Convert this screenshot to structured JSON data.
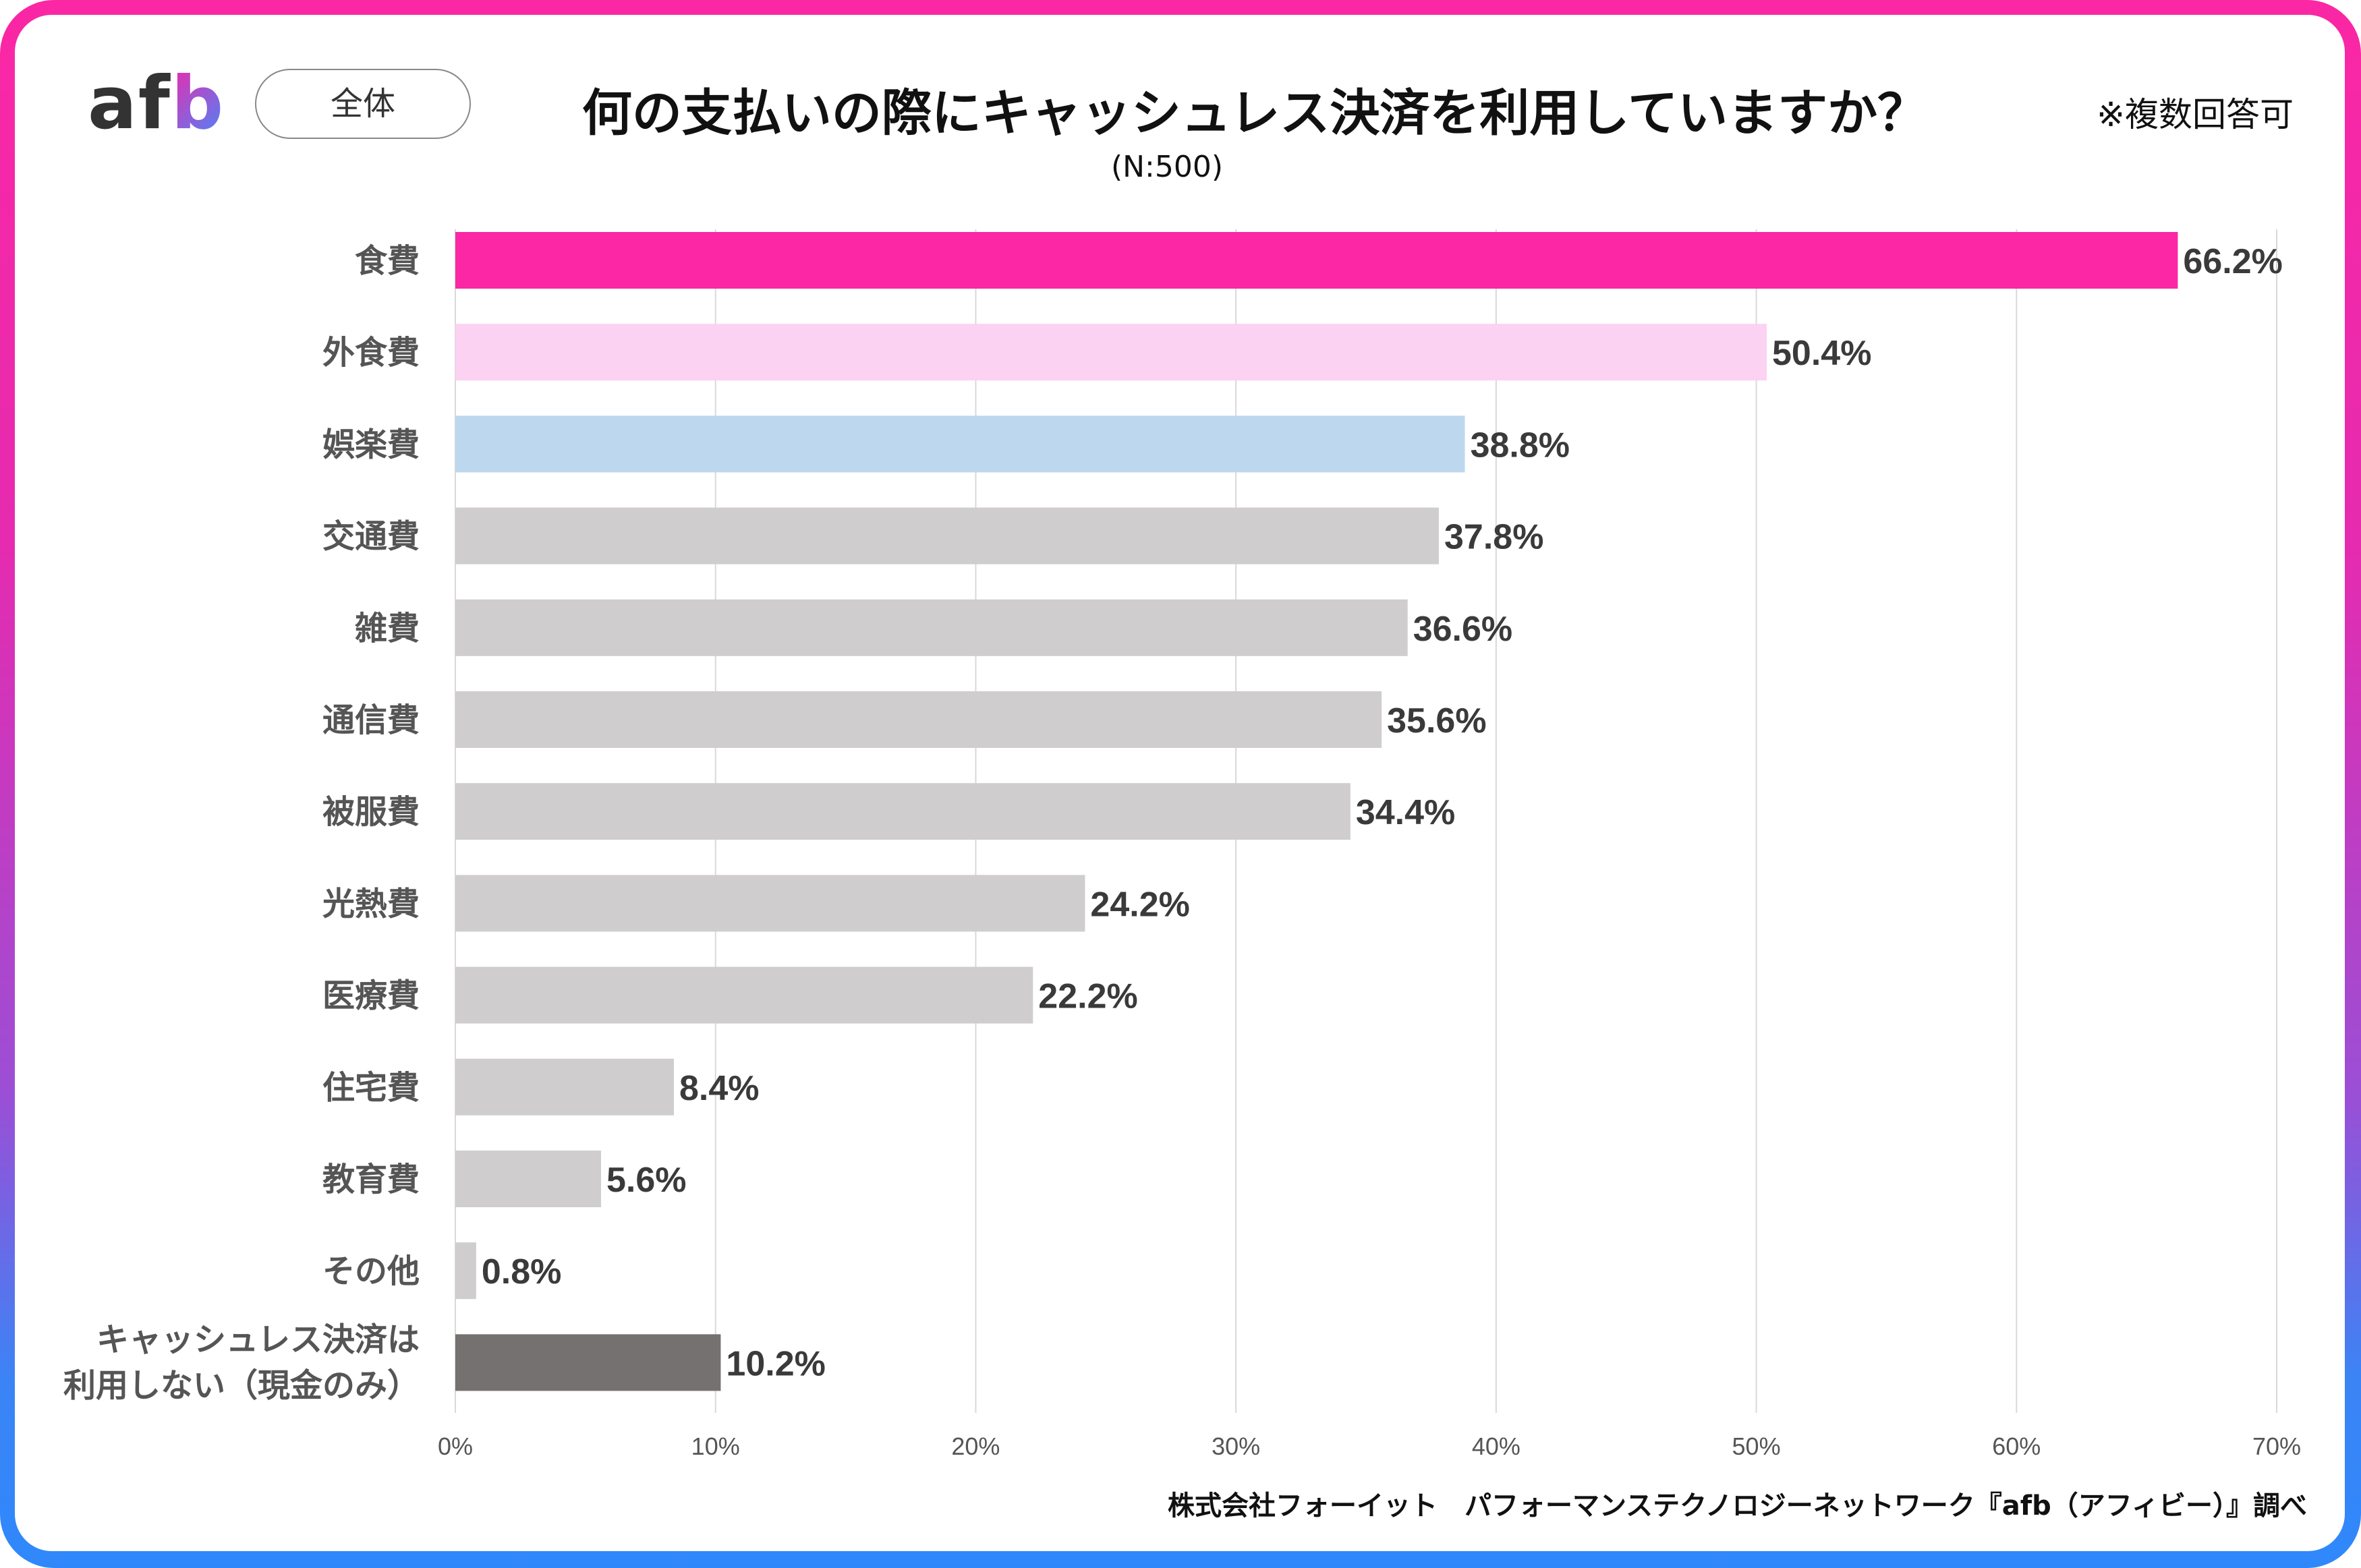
{
  "header": {
    "logo": {
      "a": "a",
      "f": "f",
      "b": "b"
    },
    "segment_pill": "全体",
    "note": "※複数回答可",
    "sample_size": "(N:500)"
  },
  "footer": {
    "credit": "株式会社フォーイット　パフォーマンステクノロジーネットワーク『afb（アフィビー）』調べ"
  },
  "colors": {
    "highlight": "#fb27a4",
    "second": "#fbd2f2",
    "third": "#bdd7ee",
    "default": "#d0cdce",
    "none": "#767171",
    "label_highlight": "#fb27a4",
    "label_default": "#3a3a3a",
    "grid": "#d9d9d9"
  },
  "chart_data": {
    "type": "bar",
    "orientation": "horizontal",
    "title": "何の支払いの際にキャッシュレス決済を利用していますか？",
    "subtitle": "(N:500)",
    "xlabel": "",
    "ylabel": "",
    "xlim": [
      0,
      70
    ],
    "grid": true,
    "x_ticks": [
      "0%",
      "10%",
      "20%",
      "30%",
      "40%",
      "50%",
      "60%",
      "70%"
    ],
    "categories": [
      "食費",
      "外食費",
      "娯楽費",
      "交通費",
      "雑費",
      "通信費",
      "被服費",
      "光熱費",
      "医療費",
      "住宅費",
      "教育費",
      "その他",
      "キャッシュレス決済は|利用しない（現金のみ）"
    ],
    "values": [
      66.2,
      50.4,
      38.8,
      37.8,
      36.6,
      35.6,
      34.4,
      24.2,
      22.2,
      8.4,
      5.6,
      0.8,
      10.2
    ],
    "value_labels": [
      "66.2%",
      "50.4%",
      "38.8%",
      "37.8%",
      "36.6%",
      "35.6%",
      "34.4%",
      "24.2%",
      "22.2%",
      "8.4%",
      "5.6%",
      "0.8%",
      "10.2%"
    ],
    "bar_color_keys": [
      "highlight",
      "second",
      "third",
      "default",
      "default",
      "default",
      "default",
      "default",
      "default",
      "default",
      "default",
      "default",
      "none"
    ]
  }
}
